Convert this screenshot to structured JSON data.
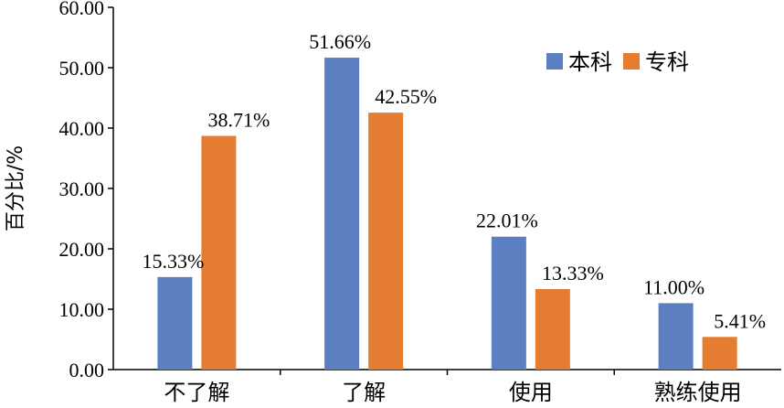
{
  "chart_data": {
    "type": "bar",
    "ylabel": "百分比/%",
    "xlabel": "",
    "ylim": [
      0,
      60
    ],
    "yticks": [
      "0.00",
      "10.00",
      "20.00",
      "30.00",
      "40.00",
      "50.00",
      "60.00"
    ],
    "categories": [
      "不了解",
      "了解",
      "使用",
      "熟练使用"
    ],
    "series": [
      {
        "name": "本科",
        "color": "#5b7fc1",
        "values": [
          15.33,
          51.66,
          22.01,
          11.0
        ],
        "labels": [
          "15.33%",
          "51.66%",
          "22.01%",
          "11.00%"
        ]
      },
      {
        "name": "专科",
        "color": "#e47d31",
        "values": [
          38.71,
          42.55,
          13.33,
          5.41
        ],
        "labels": [
          "38.71%",
          "42.55%",
          "13.33%",
          "5.41%"
        ]
      }
    ],
    "legend_position": "top-right",
    "grid": false
  }
}
